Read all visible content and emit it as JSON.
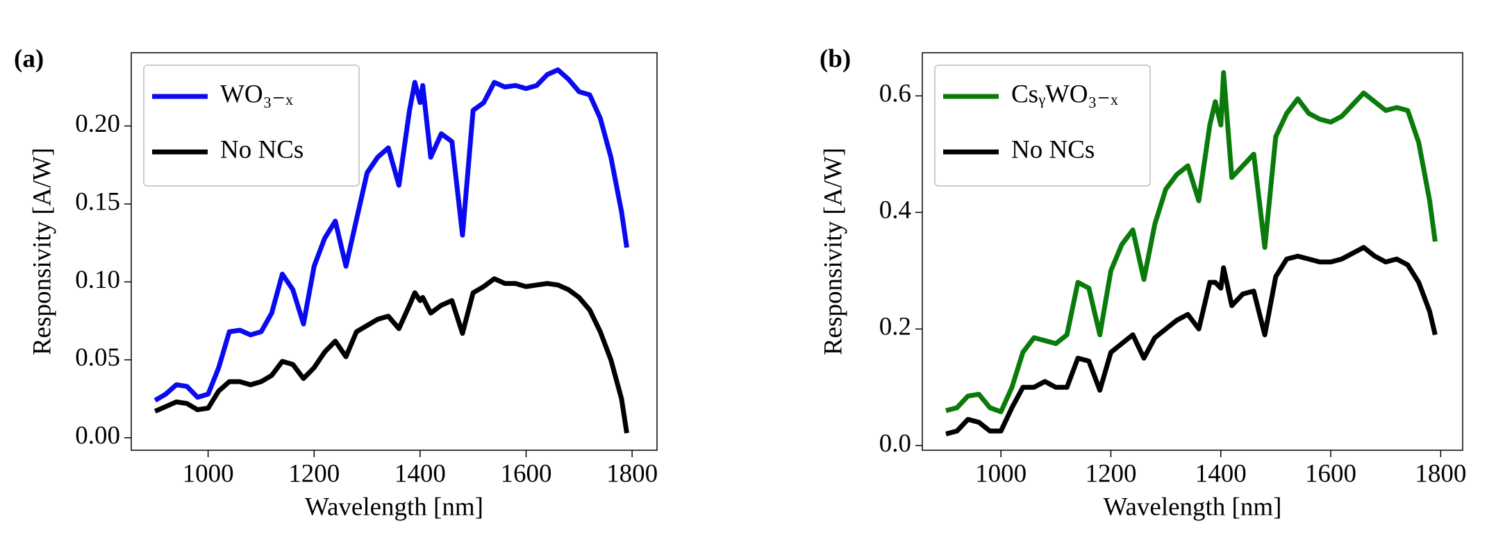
{
  "chart_data": [
    {
      "type": "line",
      "panel_label": "(a)",
      "xlabel": "Wavelength [nm]",
      "ylabel": "Responsivity [A/W]",
      "x": [
        900,
        920,
        940,
        960,
        980,
        1000,
        1020,
        1040,
        1060,
        1080,
        1100,
        1120,
        1140,
        1160,
        1180,
        1200,
        1220,
        1240,
        1260,
        1280,
        1300,
        1320,
        1340,
        1360,
        1380,
        1390,
        1400,
        1405,
        1420,
        1440,
        1460,
        1480,
        1500,
        1520,
        1540,
        1560,
        1580,
        1600,
        1620,
        1640,
        1660,
        1680,
        1700,
        1720,
        1740,
        1760,
        1780,
        1790
      ],
      "series": [
        {
          "name": "WO₃₋ₓ",
          "color": "#0a0af0",
          "values": [
            0.024,
            0.028,
            0.034,
            0.033,
            0.026,
            0.028,
            0.045,
            0.068,
            0.069,
            0.066,
            0.068,
            0.08,
            0.105,
            0.095,
            0.073,
            0.11,
            0.128,
            0.139,
            0.11,
            0.14,
            0.17,
            0.18,
            0.186,
            0.162,
            0.21,
            0.228,
            0.215,
            0.226,
            0.18,
            0.195,
            0.19,
            0.13,
            0.21,
            0.215,
            0.228,
            0.225,
            0.226,
            0.224,
            0.226,
            0.233,
            0.236,
            0.23,
            0.222,
            0.22,
            0.205,
            0.18,
            0.145,
            0.122
          ]
        },
        {
          "name": "No NCs",
          "color": "#000000",
          "values": [
            0.017,
            0.02,
            0.023,
            0.022,
            0.018,
            0.019,
            0.03,
            0.036,
            0.036,
            0.034,
            0.036,
            0.04,
            0.049,
            0.047,
            0.038,
            0.045,
            0.055,
            0.062,
            0.052,
            0.068,
            0.072,
            0.076,
            0.078,
            0.07,
            0.085,
            0.093,
            0.088,
            0.09,
            0.08,
            0.085,
            0.088,
            0.067,
            0.093,
            0.097,
            0.102,
            0.099,
            0.099,
            0.097,
            0.098,
            0.099,
            0.098,
            0.095,
            0.09,
            0.082,
            0.068,
            0.05,
            0.025,
            0.003
          ]
        }
      ],
      "xlim": [
        855,
        1847
      ],
      "ylim": [
        -0.008,
        0.247
      ],
      "xticks": [
        1000,
        1200,
        1400,
        1600,
        1800
      ],
      "yticks": [
        {
          "value": 0,
          "label": "0.00"
        },
        {
          "value": 0.05,
          "label": "0.05"
        },
        {
          "value": 0.1,
          "label": "0.10"
        },
        {
          "value": 0.15,
          "label": "0.15"
        },
        {
          "value": 0.2,
          "label": "0.20"
        }
      ],
      "legend": "upper left",
      "grid": false
    },
    {
      "type": "line",
      "panel_label": "(b)",
      "xlabel": "Wavelength [nm]",
      "ylabel": "Responsivity [A/W]",
      "x": [
        900,
        920,
        940,
        960,
        980,
        1000,
        1020,
        1040,
        1060,
        1080,
        1100,
        1120,
        1140,
        1160,
        1180,
        1200,
        1220,
        1240,
        1260,
        1280,
        1300,
        1320,
        1340,
        1360,
        1380,
        1390,
        1400,
        1405,
        1420,
        1440,
        1460,
        1480,
        1500,
        1520,
        1540,
        1560,
        1580,
        1600,
        1620,
        1640,
        1660,
        1680,
        1700,
        1720,
        1740,
        1760,
        1780,
        1790
      ],
      "series": [
        {
          "name": "CsᵧWO₃₋ₓ",
          "color": "#0a7a0a",
          "values": [
            0.06,
            0.065,
            0.085,
            0.088,
            0.065,
            0.058,
            0.1,
            0.16,
            0.185,
            0.18,
            0.175,
            0.19,
            0.28,
            0.27,
            0.19,
            0.3,
            0.345,
            0.37,
            0.285,
            0.38,
            0.44,
            0.465,
            0.48,
            0.42,
            0.55,
            0.59,
            0.55,
            0.64,
            0.46,
            0.48,
            0.5,
            0.34,
            0.53,
            0.57,
            0.595,
            0.57,
            0.56,
            0.555,
            0.565,
            0.585,
            0.605,
            0.59,
            0.575,
            0.58,
            0.575,
            0.52,
            0.42,
            0.35
          ]
        },
        {
          "name": "No NCs",
          "color": "#000000",
          "values": [
            0.02,
            0.025,
            0.045,
            0.04,
            0.025,
            0.025,
            0.065,
            0.1,
            0.1,
            0.11,
            0.1,
            0.1,
            0.15,
            0.145,
            0.095,
            0.16,
            0.175,
            0.19,
            0.15,
            0.185,
            0.2,
            0.215,
            0.225,
            0.2,
            0.28,
            0.28,
            0.27,
            0.305,
            0.24,
            0.26,
            0.265,
            0.19,
            0.29,
            0.32,
            0.325,
            0.32,
            0.315,
            0.315,
            0.32,
            0.33,
            0.34,
            0.325,
            0.315,
            0.32,
            0.31,
            0.28,
            0.23,
            0.19
          ]
        }
      ],
      "xlim": [
        857,
        1840
      ],
      "ylim": [
        -0.008,
        0.674
      ],
      "xticks": [
        1000,
        1200,
        1400,
        1600,
        1800
      ],
      "yticks": [
        {
          "value": 0,
          "label": "0.0"
        },
        0.2,
        0.4,
        0.6
      ],
      "legend": "upper left",
      "grid": false
    }
  ]
}
